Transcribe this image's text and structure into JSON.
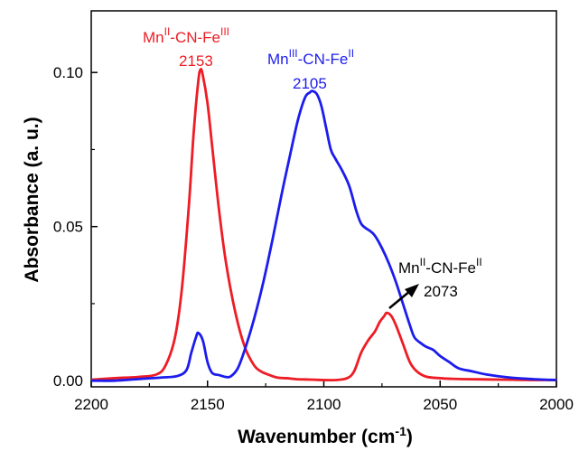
{
  "chart_data": {
    "type": "line",
    "xlabel": "Wavenumber (cm",
    "xlabel_sup": "-1",
    "xlabel_close": ")",
    "ylabel": "Absorbance (a. u.)",
    "xlim": [
      2200,
      2000
    ],
    "ylim": [
      -0.002,
      0.12
    ],
    "x_reversed": true,
    "x_ticks": [
      2200,
      2150,
      2100,
      2050,
      2000
    ],
    "x_tick_labels": [
      "2200",
      "2150",
      "2100",
      "2050",
      "2000"
    ],
    "y_ticks": [
      0.0,
      0.05,
      0.1
    ],
    "y_tick_labels": [
      "0.00",
      "0.05",
      "0.10"
    ],
    "grid": false,
    "series": [
      {
        "color": "#ee1c25",
        "x": [
          2200,
          2190,
          2180,
          2172,
          2168,
          2164,
          2161,
          2158,
          2156,
          2154,
          2153,
          2152,
          2150,
          2148,
          2145,
          2142,
          2138,
          2134,
          2130,
          2127,
          2124,
          2120,
          2116,
          2112,
          2108,
          2104,
          2100,
          2095,
          2090,
          2087,
          2084,
          2081,
          2078,
          2076,
          2074,
          2073,
          2071,
          2069,
          2066,
          2063,
          2060,
          2056,
          2050,
          2045,
          2040,
          2030,
          2020,
          2010,
          2000
        ],
        "y": [
          0.0003,
          0.0008,
          0.0012,
          0.002,
          0.005,
          0.014,
          0.03,
          0.057,
          0.08,
          0.097,
          0.101,
          0.099,
          0.09,
          0.076,
          0.055,
          0.038,
          0.022,
          0.011,
          0.005,
          0.003,
          0.002,
          0.001,
          0.0008,
          0.0005,
          0.0004,
          0.0003,
          0.0002,
          0.0002,
          0.0008,
          0.003,
          0.009,
          0.013,
          0.016,
          0.019,
          0.021,
          0.022,
          0.021,
          0.018,
          0.012,
          0.006,
          0.003,
          0.0013,
          0.0008,
          0.0006,
          0.0005,
          0.0004,
          0.0003,
          0.0002,
          0.0002
        ]
      },
      {
        "color": "#1c1cee",
        "x": [
          2200,
          2190,
          2180,
          2170,
          2163,
          2159,
          2157,
          2155,
          2154,
          2152,
          2150,
          2148,
          2145,
          2142,
          2140,
          2137,
          2134,
          2130,
          2126,
          2122,
          2118,
          2114,
          2111,
          2108,
          2106,
          2105,
          2103,
          2101,
          2099,
          2097,
          2095,
          2092,
          2089,
          2086,
          2084,
          2082,
          2080,
          2078,
          2075,
          2072,
          2069,
          2066,
          2063,
          2061,
          2058,
          2056,
          2053,
          2050,
          2046,
          2042,
          2036,
          2030,
          2020,
          2010,
          2000
        ],
        "y": [
          0.0,
          0.0,
          0.0005,
          0.001,
          0.0015,
          0.0035,
          0.009,
          0.014,
          0.0155,
          0.013,
          0.006,
          0.0025,
          0.0018,
          0.0012,
          0.0014,
          0.004,
          0.01,
          0.02,
          0.032,
          0.046,
          0.061,
          0.075,
          0.085,
          0.092,
          0.0935,
          0.094,
          0.093,
          0.089,
          0.082,
          0.075,
          0.072,
          0.068,
          0.063,
          0.055,
          0.051,
          0.0495,
          0.0485,
          0.047,
          0.043,
          0.038,
          0.032,
          0.025,
          0.018,
          0.014,
          0.012,
          0.011,
          0.01,
          0.008,
          0.006,
          0.004,
          0.003,
          0.002,
          0.001,
          0.0005,
          0.0002
        ]
      }
    ],
    "annotations": [
      {
        "base": "Mn",
        "sup1": "II",
        "mid": "-CN-Fe",
        "sup2": "III",
        "value": "2153",
        "color": "#ee1c25"
      },
      {
        "base": "Mn",
        "sup1": "III",
        "mid": "-CN-Fe",
        "sup2": "II",
        "value": "2105",
        "color": "#1c1cee"
      },
      {
        "base": "Mn",
        "sup1": "II",
        "mid": "-CN-Fe",
        "sup2": "II",
        "value": "2073",
        "color": "#000000"
      }
    ]
  }
}
